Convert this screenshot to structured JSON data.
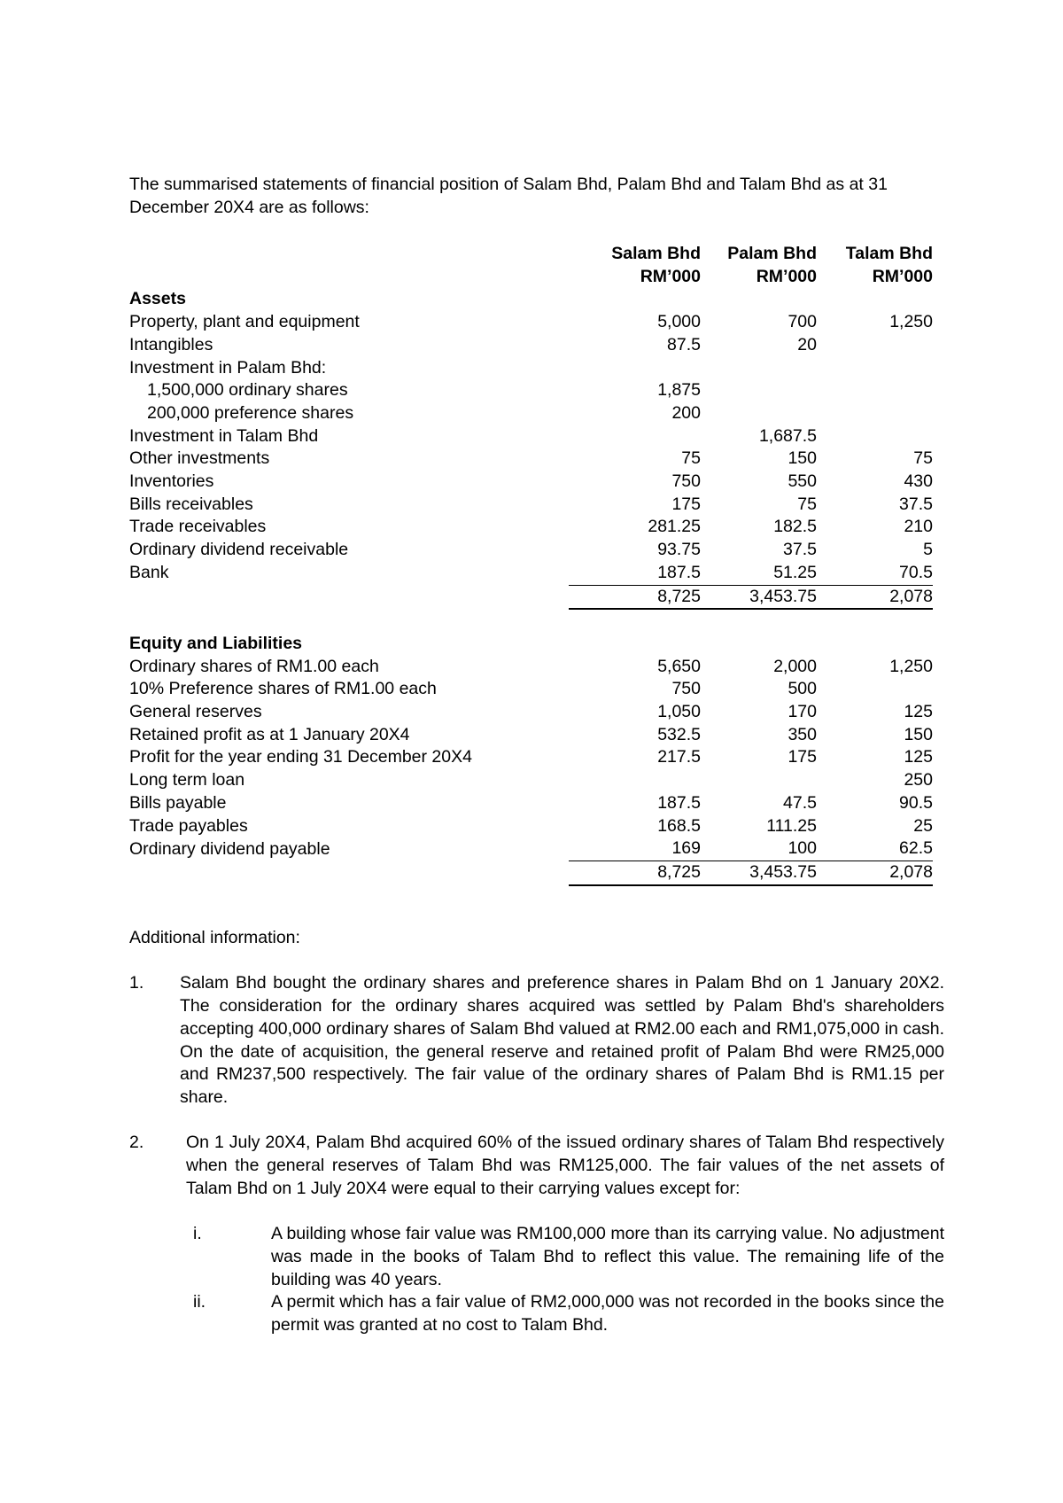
{
  "intro": "The summarised statements of financial position of Salam Bhd, Palam Bhd and Talam Bhd as at 31 December 20X4 are as follows:",
  "columns": [
    {
      "name": "Salam Bhd",
      "unit": "RM’000"
    },
    {
      "name": "Palam Bhd",
      "unit": "RM’000"
    },
    {
      "name": "Talam Bhd",
      "unit": "RM’000"
    }
  ],
  "assets_heading": "Assets",
  "assets": [
    {
      "label": "Property, plant and equipment",
      "v": [
        "5,000",
        "700",
        "1,250"
      ]
    },
    {
      "label": "Intangibles",
      "v": [
        "87.5",
        "20",
        ""
      ]
    },
    {
      "label": "Investment in Palam Bhd:",
      "v": [
        "",
        "",
        ""
      ]
    },
    {
      "label": "1,500,000 ordinary shares",
      "v": [
        "1,875",
        "",
        ""
      ],
      "indent": true
    },
    {
      "label": "200,000 preference shares",
      "v": [
        "200",
        "",
        ""
      ],
      "indent": true
    },
    {
      "label": "Investment in Talam Bhd",
      "v": [
        "",
        "1,687.5",
        ""
      ]
    },
    {
      "label": "Other investments",
      "v": [
        "75",
        "150",
        "75"
      ]
    },
    {
      "label": "Inventories",
      "v": [
        "750",
        "550",
        "430"
      ]
    },
    {
      "label": "Bills receivables",
      "v": [
        "175",
        "75",
        "37.5"
      ]
    },
    {
      "label": "Trade receivables",
      "v": [
        "281.25",
        "182.5",
        "210"
      ]
    },
    {
      "label": "Ordinary dividend receivable",
      "v": [
        "93.75",
        "37.5",
        "5"
      ]
    },
    {
      "label": "Bank",
      "v": [
        "187.5",
        "51.25",
        "70.5"
      ]
    }
  ],
  "assets_total": [
    "8,725",
    "3,453.75",
    "2,078"
  ],
  "liab_heading": "Equity and Liabilities",
  "liabilities": [
    {
      "label": "Ordinary shares of RM1.00 each",
      "v": [
        "5,650",
        "2,000",
        "1,250"
      ]
    },
    {
      "label": "10% Preference shares of RM1.00 each",
      "v": [
        "750",
        "500",
        ""
      ]
    },
    {
      "label": "General reserves",
      "v": [
        "1,050",
        "170",
        "125"
      ]
    },
    {
      "label": "Retained profit as at 1 January 20X4",
      "v": [
        "532.5",
        "350",
        "150"
      ]
    },
    {
      "label": "Profit for the year ending 31 December 20X4",
      "v": [
        "217.5",
        "175",
        "125"
      ]
    },
    {
      "label": "Long term loan",
      "v": [
        "",
        "",
        "250"
      ]
    },
    {
      "label": "Bills payable",
      "v": [
        "187.5",
        "47.5",
        "90.5"
      ]
    },
    {
      "label": "Trade payables",
      "v": [
        "168.5",
        "111.25",
        "25"
      ]
    },
    {
      "label": "Ordinary dividend payable",
      "v": [
        "169",
        "100",
        "62.5"
      ]
    }
  ],
  "liab_total": [
    "8,725",
    "3,453.75",
    "2,078"
  ],
  "additional_heading": "Additional information:",
  "items": [
    {
      "n": "1.",
      "text": "Salam Bhd bought the ordinary shares and preference shares in Palam Bhd on 1 January 20X2. The consideration for the ordinary shares acquired was settled by Palam Bhd's shareholders accepting 400,000 ordinary shares of Salam Bhd valued at RM2.00 each and RM1,075,000 in cash. On the date of acquisition, the general reserve and retained profit of Palam Bhd were RM25,000 and RM237,500 respectively. The fair value of the ordinary shares of Palam Bhd is RM1.15 per share."
    },
    {
      "n": "2.",
      "text": "On 1 July 20X4, Palam Bhd acquired 60% of the issued ordinary shares of Talam Bhd respectively when the general reserves of Talam Bhd was RM125,000. The fair values of the net assets of Talam Bhd on 1 July 20X4 were equal to their carrying values except for:"
    }
  ],
  "subitems": [
    {
      "n": "i.",
      "text": "A building whose fair value was RM100,000 more than its carrying value. No adjustment was made in the books of Talam Bhd to reflect this value. The remaining life of the building was 40 years."
    },
    {
      "n": "ii.",
      "text": "A permit which has a fair value of RM2,000,000 was not recorded in the books since the permit was granted at no cost to Talam Bhd."
    }
  ]
}
